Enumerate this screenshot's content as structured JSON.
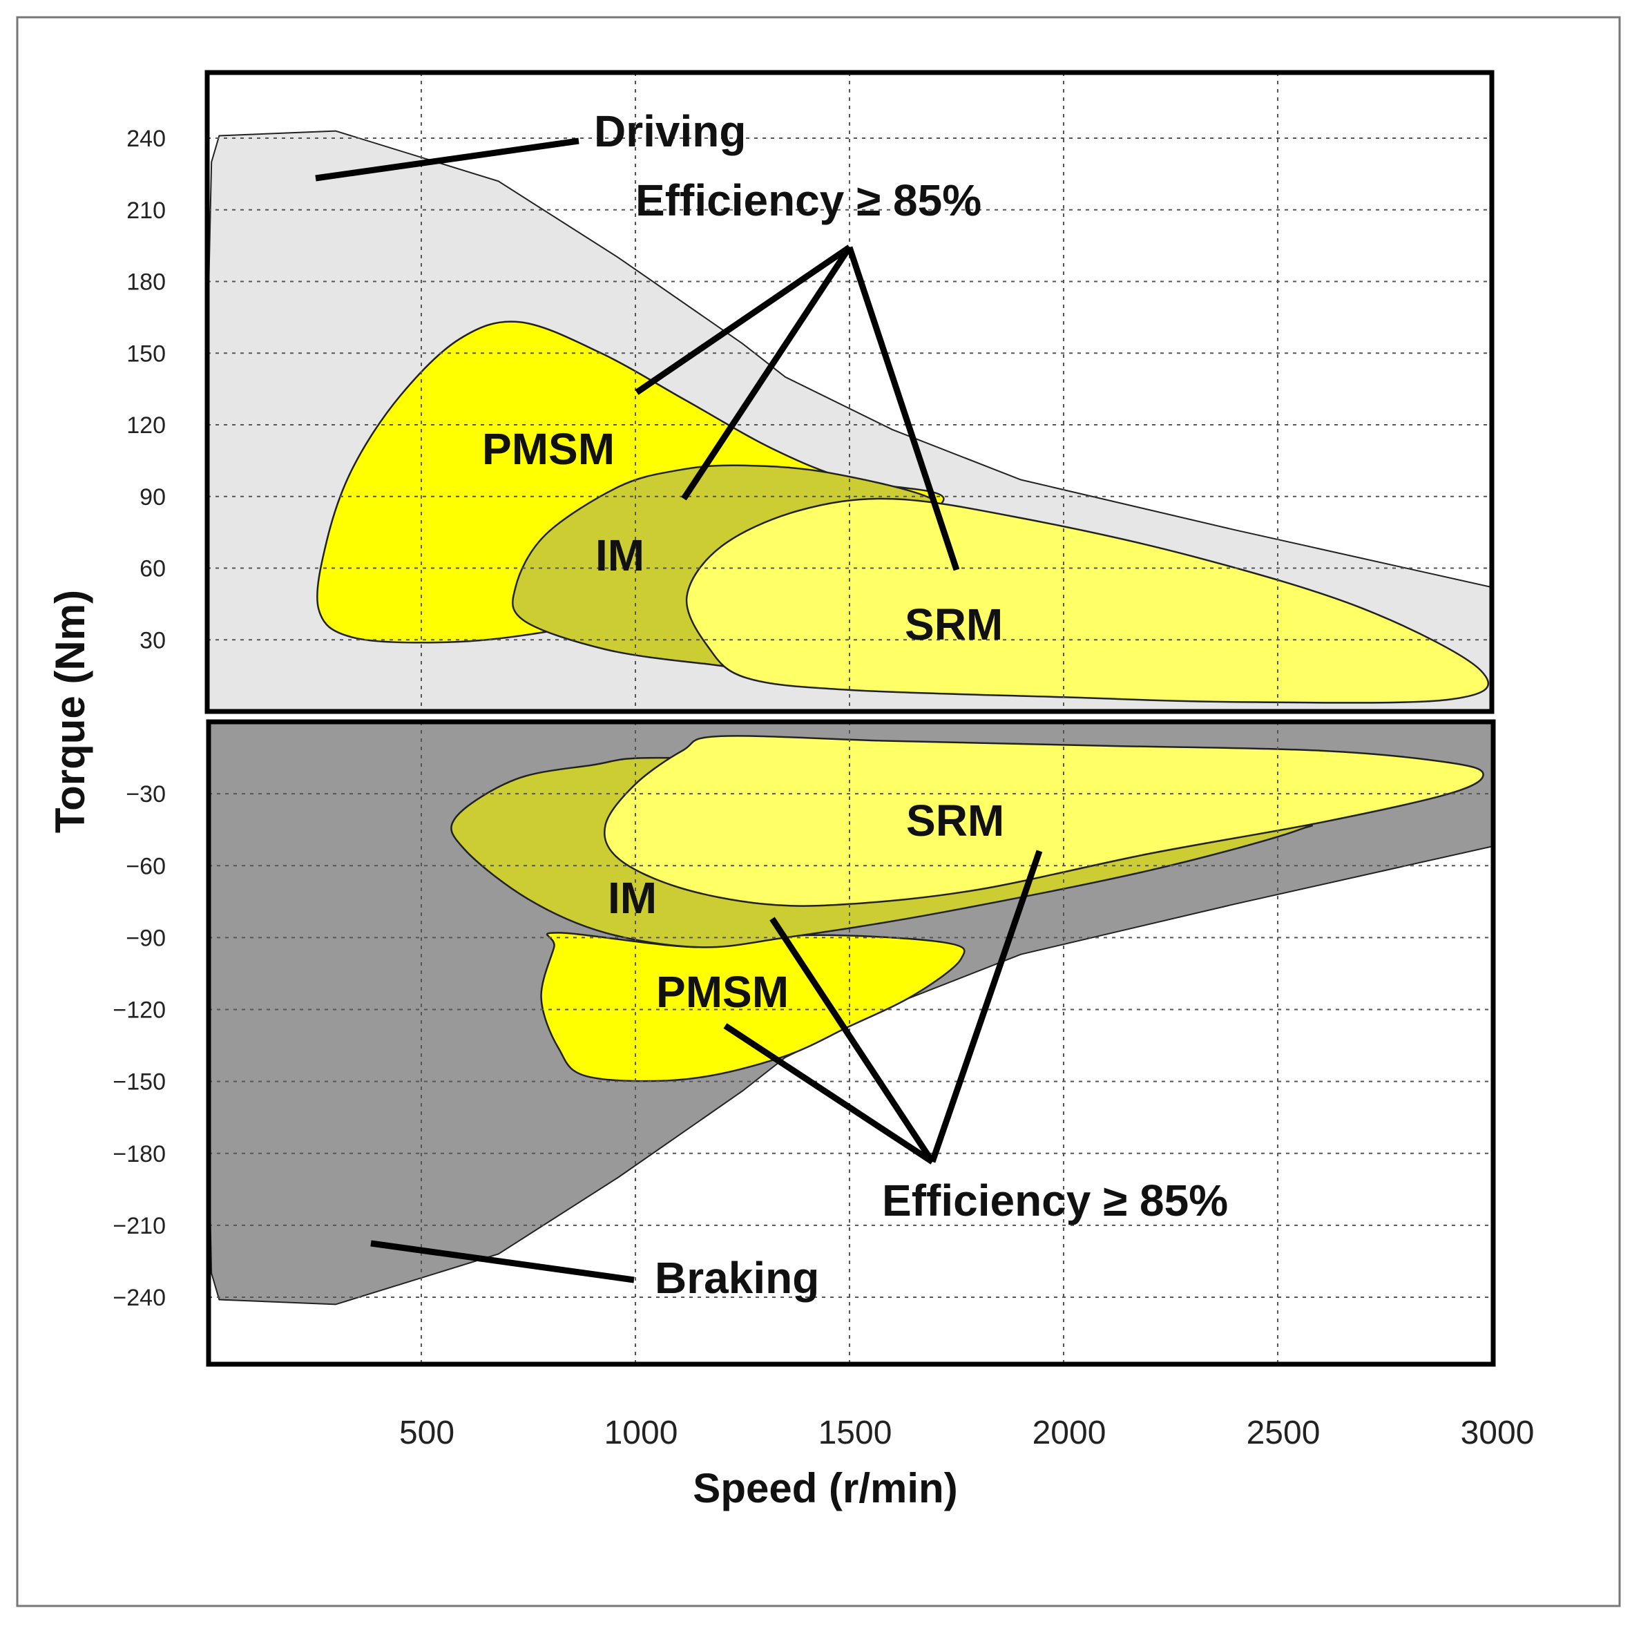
{
  "chart_data": {
    "type": "area",
    "title": "",
    "xlabel": "Speed (r/min)",
    "ylabel": "Torque (Nm)",
    "xlim": [
      0,
      3000
    ],
    "ylim_driving": [
      0,
      270
    ],
    "ylim_braking": [
      -270,
      0
    ],
    "x_ticks": [
      "500",
      "1000",
      "1500",
      "2000",
      "2500",
      "3000"
    ],
    "y_ticks_driving": [
      "240",
      "210",
      "180",
      "150",
      "120",
      "90",
      "60",
      "30"
    ],
    "y_ticks_braking": [
      "−30",
      "−60",
      "−90",
      "−120",
      "−150",
      "−180",
      "−210",
      "−240"
    ],
    "grid": true,
    "colors": {
      "driving_envelope": "#e6e6e6",
      "braking_envelope": "#999999",
      "PMSM": "#ffff00",
      "IM": "#cccc33",
      "SRM": "#ffff66"
    },
    "series": [
      {
        "name": "Driving",
        "mode": "driving",
        "points": [
          [
            28,
            241
          ],
          [
            300,
            243
          ],
          [
            680,
            222
          ],
          [
            960,
            190
          ],
          [
            1250,
            154
          ],
          [
            1350,
            140
          ],
          [
            1600,
            118
          ],
          [
            1900,
            97
          ],
          [
            2400,
            76
          ],
          [
            3000,
            52
          ],
          [
            3000,
            0
          ],
          [
            0,
            0
          ],
          [
            0,
            150
          ],
          [
            10,
            230
          ]
        ]
      },
      {
        "name": "PMSM",
        "mode": "driving",
        "points": [
          [
            730,
            163
          ],
          [
            920,
            150
          ],
          [
            1120,
            130
          ],
          [
            1320,
            110
          ],
          [
            1500,
            97
          ],
          [
            1720,
            89
          ],
          [
            1500,
            68
          ],
          [
            1250,
            58
          ],
          [
            1050,
            43
          ],
          [
            780,
            33
          ],
          [
            560,
            29
          ],
          [
            340,
            31
          ],
          [
            260,
            43
          ],
          [
            280,
            72
          ],
          [
            340,
            102
          ],
          [
            450,
            132
          ],
          [
            590,
            156
          ]
        ]
      },
      {
        "name": "IM",
        "mode": "driving",
        "points": [
          [
            1240,
            103
          ],
          [
            1450,
            100
          ],
          [
            1700,
            88
          ],
          [
            1600,
            76
          ],
          [
            1420,
            65
          ],
          [
            1320,
            55
          ],
          [
            1260,
            36
          ],
          [
            1330,
            18
          ],
          [
            1160,
            20
          ],
          [
            930,
            26
          ],
          [
            740,
            38
          ],
          [
            720,
            52
          ],
          [
            790,
            74
          ],
          [
            960,
            94
          ],
          [
            1100,
            101
          ]
        ]
      },
      {
        "name": "SRM",
        "mode": "driving",
        "points": [
          [
            1600,
            89
          ],
          [
            1900,
            81
          ],
          [
            2300,
            65
          ],
          [
            2700,
            43
          ],
          [
            2975,
            17
          ],
          [
            2900,
            5
          ],
          [
            2400,
            4
          ],
          [
            2000,
            6
          ],
          [
            1500,
            9
          ],
          [
            1260,
            14
          ],
          [
            1170,
            27
          ],
          [
            1120,
            48
          ],
          [
            1200,
            69
          ],
          [
            1380,
            84
          ]
        ]
      },
      {
        "name": "Braking",
        "mode": "braking",
        "points": [
          [
            0,
            0
          ],
          [
            3000,
            0
          ],
          [
            3000,
            -52
          ],
          [
            2400,
            -76
          ],
          [
            1900,
            -97
          ],
          [
            1600,
            -118
          ],
          [
            1350,
            -140
          ],
          [
            1250,
            -154
          ],
          [
            960,
            -190
          ],
          [
            680,
            -222
          ],
          [
            300,
            -243
          ],
          [
            28,
            -241
          ],
          [
            10,
            -230
          ],
          [
            0,
            -150
          ]
        ]
      },
      {
        "name": "PMSM",
        "mode": "braking",
        "points": [
          [
            820,
            -88
          ],
          [
            1150,
            -94
          ],
          [
            1400,
            -89
          ],
          [
            1720,
            -92
          ],
          [
            1760,
            -99
          ],
          [
            1650,
            -114
          ],
          [
            1500,
            -127
          ],
          [
            1340,
            -140
          ],
          [
            1120,
            -149
          ],
          [
            890,
            -148
          ],
          [
            820,
            -136
          ],
          [
            780,
            -115
          ],
          [
            810,
            -94
          ]
        ]
      },
      {
        "name": "IM",
        "mode": "braking",
        "points": [
          [
            1050,
            -15
          ],
          [
            1500,
            -18
          ],
          [
            2000,
            -28
          ],
          [
            2500,
            -42
          ],
          [
            2550,
            -45
          ],
          [
            2200,
            -62
          ],
          [
            1700,
            -80
          ],
          [
            1350,
            -90
          ],
          [
            1150,
            -94
          ],
          [
            930,
            -88
          ],
          [
            750,
            -74
          ],
          [
            600,
            -53
          ],
          [
            580,
            -40
          ],
          [
            720,
            -24
          ],
          [
            900,
            -18
          ]
        ]
      },
      {
        "name": "SRM",
        "mode": "braking",
        "points": [
          [
            1200,
            -6
          ],
          [
            1600,
            -8
          ],
          [
            2100,
            -10
          ],
          [
            2600,
            -12
          ],
          [
            2900,
            -17
          ],
          [
            2980,
            -22
          ],
          [
            2900,
            -30
          ],
          [
            2600,
            -42
          ],
          [
            2200,
            -55
          ],
          [
            1800,
            -70
          ],
          [
            1500,
            -76
          ],
          [
            1300,
            -76
          ],
          [
            1100,
            -69
          ],
          [
            960,
            -57
          ],
          [
            930,
            -43
          ],
          [
            1000,
            -26
          ],
          [
            1110,
            -12
          ]
        ]
      }
    ],
    "annotations": [
      {
        "text": "Driving"
      },
      {
        "text": "Efficiency ≥ 85%"
      },
      {
        "text": "PMSM"
      },
      {
        "text": "IM"
      },
      {
        "text": "SRM"
      },
      {
        "text": "SRM"
      },
      {
        "text": "IM"
      },
      {
        "text": "PMSM"
      },
      {
        "text": "Efficiency ≥ 85%"
      },
      {
        "text": "Braking"
      }
    ]
  }
}
